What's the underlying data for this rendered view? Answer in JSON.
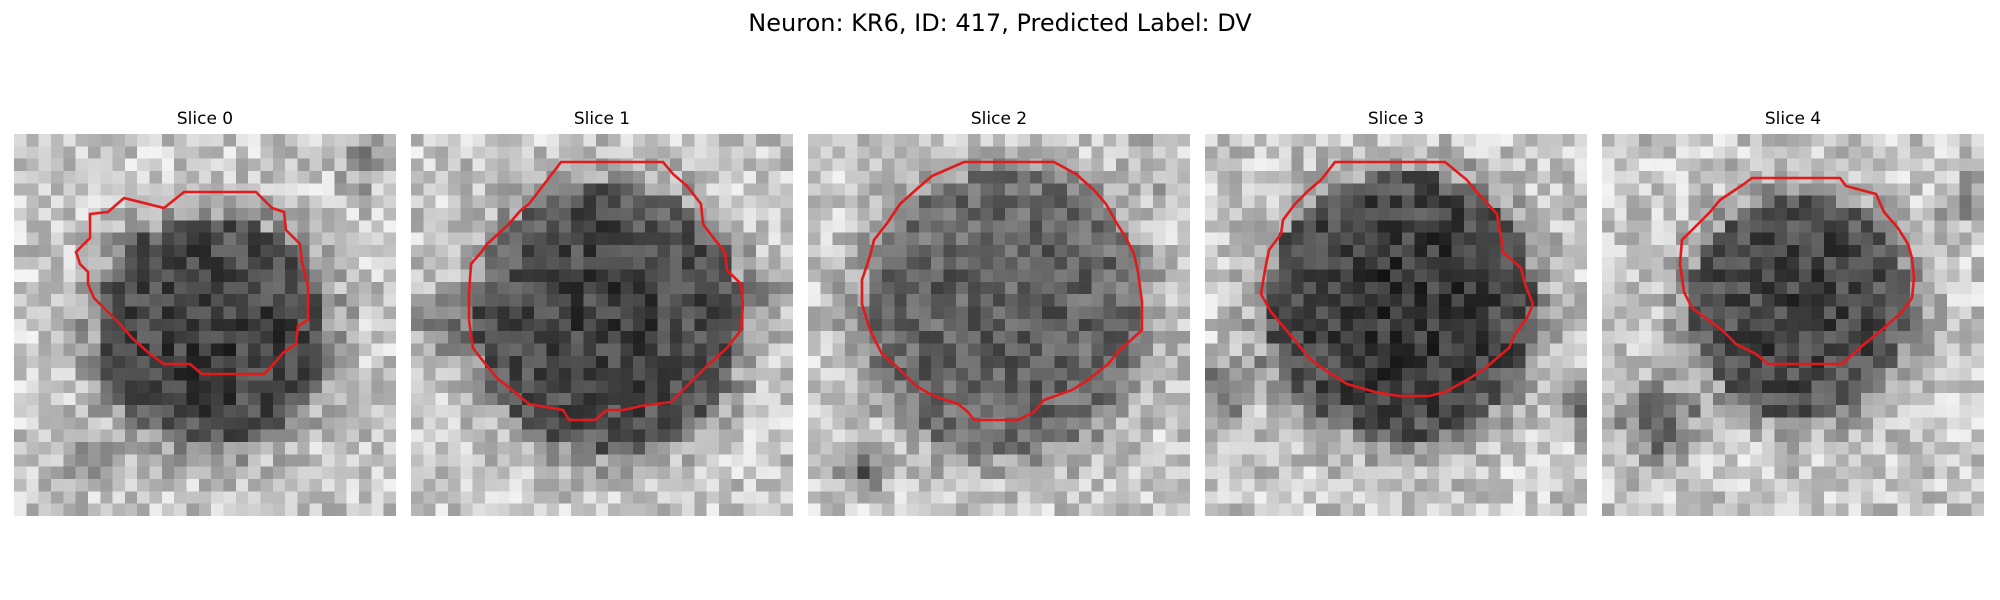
{
  "figure": {
    "title": "Neuron: KR6, ID: 417, Predicted Label: DV",
    "contour_color": "#e31a1c",
    "colormap": "gray",
    "slices": [
      {
        "label": "Slice 0"
      },
      {
        "label": "Slice 1"
      },
      {
        "label": "Slice 2"
      },
      {
        "label": "Slice 3"
      },
      {
        "label": "Slice 4"
      }
    ]
  }
}
